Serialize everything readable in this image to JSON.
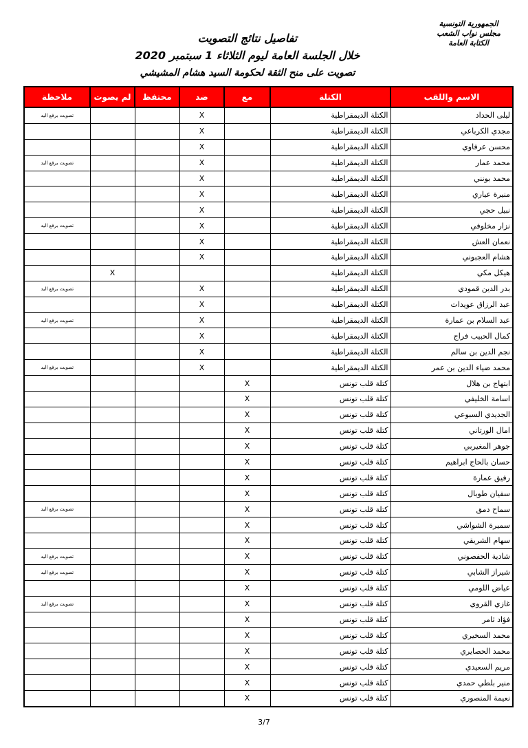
{
  "header": {
    "org_lines": [
      "الجمهورية التونسية",
      "مجلس نواب الشعب",
      "الكتابة العامة"
    ],
    "title": "تفاصيل نتائج التصويت",
    "subtitle": "خلال الجلسة العامة ليوم الثلاثاء 1 سبتمبر 2020",
    "subject": "تصويت على منح الثقة لحكومة السيد هشام المشيشي"
  },
  "colors": {
    "header_bg": "#ff0000",
    "header_text": "#ffffff"
  },
  "table": {
    "columns": [
      "الاسم واللقب",
      "الكتلة",
      "مع",
      "ضد",
      "محتفظ",
      "لم يصوت",
      "ملاحظة"
    ],
    "mark": "X",
    "rows": [
      {
        "name": "ليلى الحداد",
        "bloc": "الكتلة الديمقراطية",
        "vote": "ضد",
        "note": "تصويت برفع اليد"
      },
      {
        "name": "مجدي الكرباعي",
        "bloc": "الكتلة الديمقراطية",
        "vote": "ضد",
        "note": ""
      },
      {
        "name": "محسن عرفاوي",
        "bloc": "الكتلة الديمقراطية",
        "vote": "ضد",
        "note": ""
      },
      {
        "name": "محمد عمار",
        "bloc": "الكتلة الديمقراطية",
        "vote": "ضد",
        "note": "تصويت برفع اليد"
      },
      {
        "name": "محمد بونني",
        "bloc": "الكتلة الديمقراطية",
        "vote": "ضد",
        "note": ""
      },
      {
        "name": "منيرة عياري",
        "bloc": "الكتلة الديمقراطية",
        "vote": "ضد",
        "note": ""
      },
      {
        "name": "نبيل حجي",
        "bloc": "الكتلة الديمقراطية",
        "vote": "ضد",
        "note": ""
      },
      {
        "name": "نزار مخلوفي",
        "bloc": "الكتلة الديمقراطية",
        "vote": "ضد",
        "note": "تصويت برفع اليد"
      },
      {
        "name": "نعمان العش",
        "bloc": "الكتلة الديمقراطية",
        "vote": "ضد",
        "note": ""
      },
      {
        "name": "هشام العجبوني",
        "bloc": "الكتلة الديمقراطية",
        "vote": "ضد",
        "note": ""
      },
      {
        "name": "هيكل مكي",
        "bloc": "الكتلة الديمقراطية",
        "vote": "لم يصوت",
        "note": ""
      },
      {
        "name": "بدر الدين قمودي",
        "bloc": "الكتلة الديمقراطية",
        "vote": "ضد",
        "note": "تصويت برفع اليد"
      },
      {
        "name": "عبد الرزاق عويدات",
        "bloc": "الكتلة الديمقراطية",
        "vote": "ضد",
        "note": ""
      },
      {
        "name": "عبد السلام بن عمارة",
        "bloc": "الكتلة الديمقراطية",
        "vote": "ضد",
        "note": "تصويت برفع اليد"
      },
      {
        "name": "كمال الحبيب فراج",
        "bloc": "الكتلة الديمقراطية",
        "vote": "ضد",
        "note": ""
      },
      {
        "name": "نجم الدين بن سالم",
        "bloc": "الكتلة الديمقراطية",
        "vote": "ضد",
        "note": ""
      },
      {
        "name": "محمد ضياء الدين بن عمر",
        "bloc": "الكتلة الديمقراطية",
        "vote": "ضد",
        "note": "تصويت برفع اليد"
      },
      {
        "name": "ابتهاج بن هلال",
        "bloc": "كتلة قلب تونس",
        "vote": "مع",
        "note": ""
      },
      {
        "name": "اسامة الخليفي",
        "bloc": "كتلة قلب تونس",
        "vote": "مع",
        "note": ""
      },
      {
        "name": "الجديدي السبوعي",
        "bloc": "كتلة قلب تونس",
        "vote": "مع",
        "note": ""
      },
      {
        "name": "امال الورتاني",
        "bloc": "كتلة قلب تونس",
        "vote": "مع",
        "note": ""
      },
      {
        "name": "جوهر المغيربي",
        "bloc": "كتلة قلب تونس",
        "vote": "مع",
        "note": ""
      },
      {
        "name": "حسان بالحاج ابراهيم",
        "bloc": "كتلة قلب تونس",
        "vote": "مع",
        "note": ""
      },
      {
        "name": "رفيق عمارة",
        "bloc": "كتلة قلب تونس",
        "vote": "مع",
        "note": ""
      },
      {
        "name": "سفيان طوبال",
        "bloc": "كتلة قلب تونس",
        "vote": "مع",
        "note": ""
      },
      {
        "name": "سماح دمق",
        "bloc": "كتلة قلب تونس",
        "vote": "مع",
        "note": "تصويت برفع اليد"
      },
      {
        "name": "سميرة الشواشي",
        "bloc": "كتلة قلب تونس",
        "vote": "مع",
        "note": ""
      },
      {
        "name": "سهام الشريقي",
        "bloc": "كتلة قلب تونس",
        "vote": "مع",
        "note": ""
      },
      {
        "name": "شادية الحفصوني",
        "bloc": "كتلة قلب تونس",
        "vote": "مع",
        "note": "تصويت برفع اليد"
      },
      {
        "name": "شيراز الشابي",
        "bloc": "كتلة قلب تونس",
        "vote": "مع",
        "note": "تصويت برفع اليد"
      },
      {
        "name": "عياض اللومي",
        "bloc": "كتلة قلب تونس",
        "vote": "مع",
        "note": ""
      },
      {
        "name": "غازي القروي",
        "bloc": "كتلة قلب تونس",
        "vote": "مع",
        "note": "تصويت برفع اليد"
      },
      {
        "name": "فؤاد ثامر",
        "bloc": "كتلة قلب تونس",
        "vote": "مع",
        "note": ""
      },
      {
        "name": "محمد السخيري",
        "bloc": "كتلة قلب تونس",
        "vote": "مع",
        "note": ""
      },
      {
        "name": "محمد الحصايري",
        "bloc": "كتلة قلب تونس",
        "vote": "مع",
        "note": ""
      },
      {
        "name": "مريم السعيدي",
        "bloc": "كتلة قلب تونس",
        "vote": "مع",
        "note": ""
      },
      {
        "name": "منير بلطي حمدي",
        "bloc": "كتلة قلب تونس",
        "vote": "مع",
        "note": ""
      },
      {
        "name": "نعيمة المنصوري",
        "bloc": "كتلة قلب تونس",
        "vote": "مع",
        "note": ""
      }
    ]
  },
  "footer": {
    "page_number": "3/7"
  }
}
